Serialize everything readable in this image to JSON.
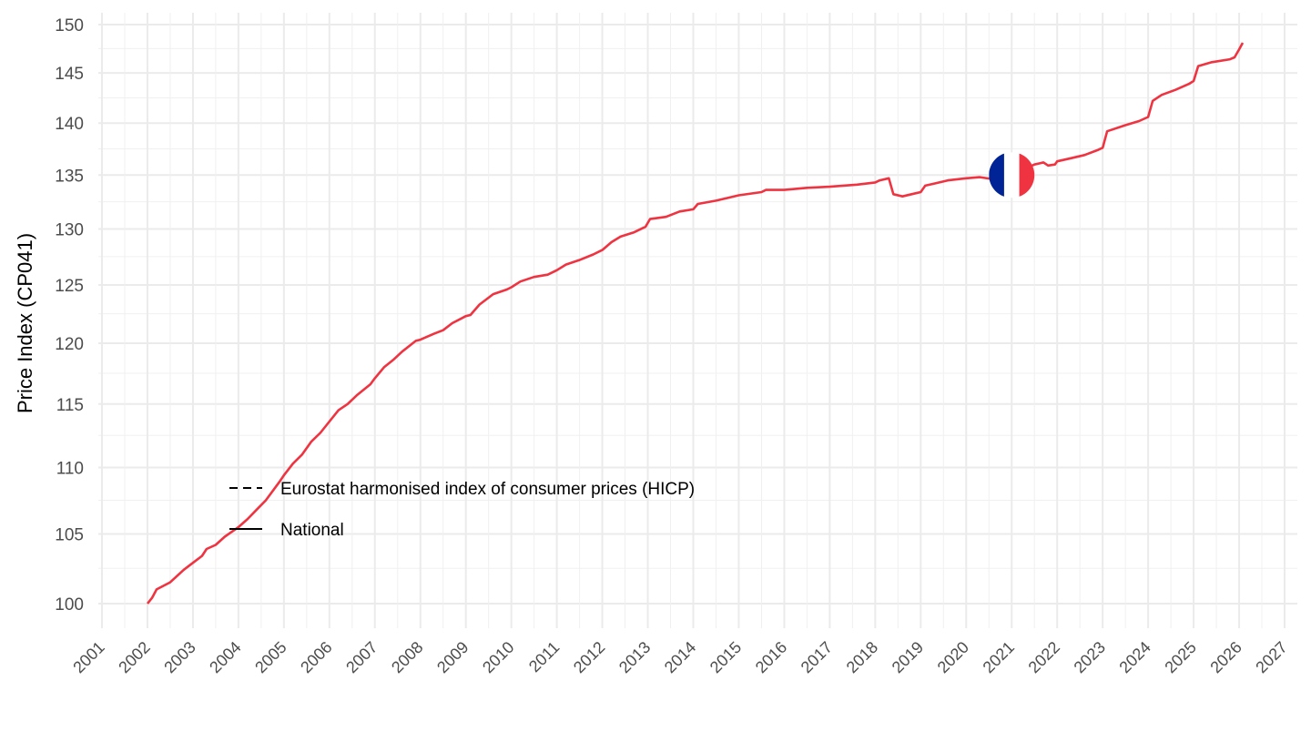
{
  "chart_data": {
    "type": "line",
    "title": "",
    "xlabel": "",
    "ylabel": "Price Index (CP041)",
    "y_scale": "log",
    "ylim": [
      98.5,
      151
    ],
    "xlim": [
      2000.9,
      2027.3
    ],
    "grid": true,
    "y_ticks": [
      100,
      105,
      110,
      115,
      120,
      125,
      130,
      135,
      140,
      145,
      150
    ],
    "x_ticks": [
      "2001",
      "2002",
      "2003",
      "2004",
      "2005",
      "2006",
      "2007",
      "2008",
      "2009",
      "2010",
      "2011",
      "2012",
      "2013",
      "2014",
      "2015",
      "2016",
      "2017",
      "2018",
      "2019",
      "2020",
      "2021",
      "2022",
      "2023",
      "2024",
      "2025",
      "2026",
      "2027"
    ],
    "legend": {
      "placement": "bottom-left-inside",
      "entries": [
        {
          "label": "Eurostat harmonised index of consumer prices (HICP)",
          "style": "dashed"
        },
        {
          "label": "National",
          "style": "solid"
        }
      ]
    },
    "series": [
      {
        "name": "National",
        "color": "#EF3340",
        "x": [
          2002.0,
          2002.1,
          2002.2,
          2002.5,
          2002.8,
          2003.0,
          2003.2,
          2003.3,
          2003.5,
          2003.7,
          2004.0,
          2004.2,
          2004.4,
          2004.6,
          2004.9,
          2005.0,
          2005.2,
          2005.4,
          2005.6,
          2005.8,
          2006.0,
          2006.2,
          2006.4,
          2006.6,
          2006.9,
          2007.0,
          2007.2,
          2007.4,
          2007.6,
          2007.9,
          2008.0,
          2008.3,
          2008.5,
          2008.7,
          2009.0,
          2009.1,
          2009.3,
          2009.6,
          2009.9,
          2010.0,
          2010.2,
          2010.5,
          2010.8,
          2011.0,
          2011.2,
          2011.5,
          2011.8,
          2012.0,
          2012.2,
          2012.4,
          2012.7,
          2012.95,
          2013.05,
          2013.4,
          2013.7,
          2014.0,
          2014.1,
          2014.5,
          2014.8,
          2015.0,
          2015.5,
          2015.6,
          2016.0,
          2016.5,
          2017.0,
          2017.3,
          2017.6,
          2018.0,
          2018.1,
          2018.3,
          2018.4,
          2018.6,
          2018.8,
          2019.0,
          2019.1,
          2019.3,
          2019.6,
          2020.0,
          2020.3,
          2020.6,
          2021.0,
          2021.3,
          2021.5,
          2021.7,
          2021.8,
          2021.95,
          2022.0,
          2022.3,
          2022.6,
          2022.9,
          2023.0,
          2023.1,
          2023.5,
          2023.8,
          2024.0,
          2024.1,
          2024.3,
          2024.6,
          2024.9,
          2025.0,
          2025.1,
          2025.4,
          2025.8,
          2025.9,
          2026.0,
          2026.08
        ],
        "values": [
          100.0,
          100.4,
          101.0,
          101.5,
          102.4,
          102.9,
          103.4,
          103.9,
          104.2,
          104.8,
          105.5,
          106.1,
          106.8,
          107.5,
          108.9,
          109.4,
          110.3,
          111.0,
          112.0,
          112.7,
          113.6,
          114.5,
          115.0,
          115.7,
          116.6,
          117.1,
          118.0,
          118.6,
          119.3,
          120.2,
          120.3,
          120.8,
          121.1,
          121.7,
          122.3,
          122.4,
          123.3,
          124.2,
          124.6,
          124.8,
          125.3,
          125.7,
          125.9,
          126.3,
          126.8,
          127.2,
          127.7,
          128.1,
          128.8,
          129.3,
          129.7,
          130.2,
          130.9,
          131.1,
          131.6,
          131.8,
          132.3,
          132.6,
          132.9,
          133.1,
          133.4,
          133.6,
          133.6,
          133.8,
          133.9,
          134.0,
          134.1,
          134.3,
          134.5,
          134.7,
          133.2,
          133.0,
          133.2,
          133.4,
          134.0,
          134.2,
          134.5,
          134.7,
          134.8,
          134.6,
          135.2,
          135.6,
          136.0,
          136.2,
          135.9,
          136.0,
          136.3,
          136.6,
          136.9,
          137.4,
          137.6,
          139.2,
          139.8,
          140.2,
          140.6,
          142.2,
          142.8,
          143.3,
          143.9,
          144.2,
          145.7,
          146.1,
          146.4,
          146.6,
          147.4,
          148.1
        ]
      },
      {
        "name": "Eurostat harmonised index of consumer prices (HICP)",
        "color": "#EF3340",
        "x": [],
        "values": []
      }
    ],
    "annotations": [
      {
        "type": "flag",
        "country": "France",
        "x": 2021.0,
        "y": 135,
        "colors": [
          "#002395",
          "#FFFFFF",
          "#EF3340"
        ]
      }
    ]
  }
}
